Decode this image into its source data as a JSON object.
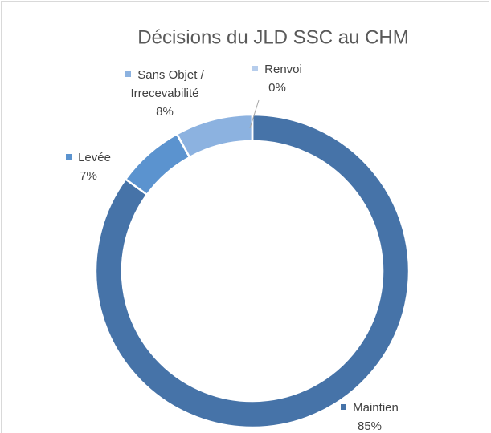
{
  "chart_data": {
    "type": "donut",
    "title": "Décisions du JLD SSC au CHM",
    "categories": [
      "Maintien",
      "Levée",
      "Sans Objet / Irrecevabilité",
      "Renvoi"
    ],
    "values": [
      85,
      7,
      8,
      0
    ],
    "value_labels": [
      "85%",
      "7%",
      "8%",
      "0%"
    ],
    "colors": [
      "#4673a8",
      "#5b93cf",
      "#8cb2e0",
      "#b6cdec"
    ]
  }
}
